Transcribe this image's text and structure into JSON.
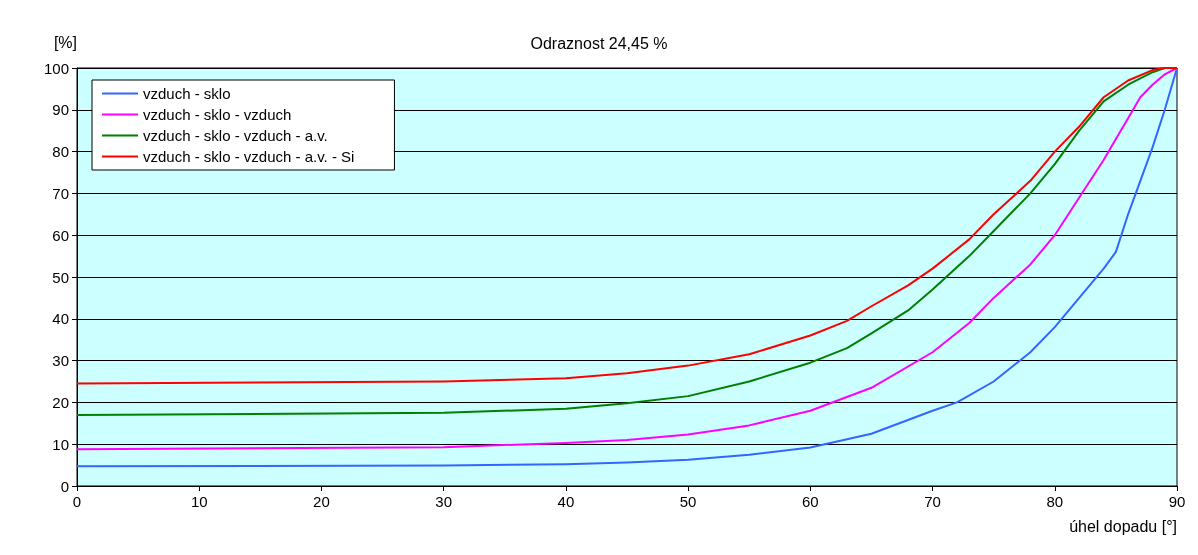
{
  "chart_data": {
    "type": "line",
    "title": "Odraznost 24,45 %",
    "xlabel": "úhel dopadu [°]",
    "ylabel": "[%]",
    "xlim": [
      0,
      90
    ],
    "xticks": [
      0,
      10,
      20,
      30,
      40,
      50,
      60,
      70,
      80,
      90
    ],
    "ylim": [
      0,
      100
    ],
    "yticks": [
      0,
      10,
      20,
      30,
      40,
      50,
      60,
      70,
      80,
      90,
      100
    ],
    "grid": "y",
    "legend": "top left",
    "marker": "none",
    "line_style": "solid",
    "series": [
      {
        "name": "vzduch - sklo",
        "color": "#3366ff",
        "x": [
          0,
          30,
          40,
          45,
          50,
          55,
          60,
          65,
          70,
          72,
          75,
          78,
          80,
          82,
          84,
          85,
          86,
          88,
          89,
          90
        ],
        "values": [
          4.7,
          4.9,
          5.2,
          5.6,
          6.3,
          7.5,
          9.2,
          12.5,
          18,
          20,
          25,
          32,
          38,
          45,
          52,
          56,
          65,
          81,
          90,
          100
        ]
      },
      {
        "name": "vzduch - sklo - vzduch",
        "color": "#ff00ff",
        "x": [
          0,
          30,
          40,
          45,
          50,
          55,
          60,
          65,
          70,
          73,
          75,
          78,
          80,
          82,
          84,
          85,
          86,
          87,
          88,
          89,
          90
        ],
        "values": [
          8.8,
          9.3,
          10.3,
          11,
          12.3,
          14.5,
          18,
          23.5,
          32,
          39,
          45,
          53,
          60,
          69,
          78,
          83,
          88,
          93,
          96,
          98.5,
          100
        ]
      },
      {
        "name": "vzduch - sklo - vzduch - a.v.",
        "color": "#008000",
        "x": [
          0,
          30,
          40,
          45,
          50,
          55,
          60,
          63,
          65,
          68,
          70,
          73,
          75,
          78,
          80,
          82,
          84,
          86,
          88,
          89,
          90
        ],
        "values": [
          17,
          17.5,
          18.5,
          19.8,
          21.5,
          25,
          29.5,
          33,
          36.5,
          42,
          47,
          55,
          61,
          70,
          77,
          85,
          92,
          96,
          99,
          100,
          100
        ]
      },
      {
        "name": "vzduch - sklo - vzduch - a.v. - Si",
        "color": "#ff0000",
        "x": [
          0,
          30,
          40,
          45,
          50,
          55,
          60,
          63,
          65,
          68,
          70,
          73,
          75,
          78,
          80,
          82,
          84,
          86,
          88,
          89,
          90
        ],
        "values": [
          24.5,
          25,
          25.8,
          27,
          28.8,
          31.5,
          36,
          39.5,
          43,
          48,
          52,
          59,
          65,
          73,
          80,
          86,
          93,
          97,
          99.5,
          100,
          100
        ]
      }
    ]
  }
}
